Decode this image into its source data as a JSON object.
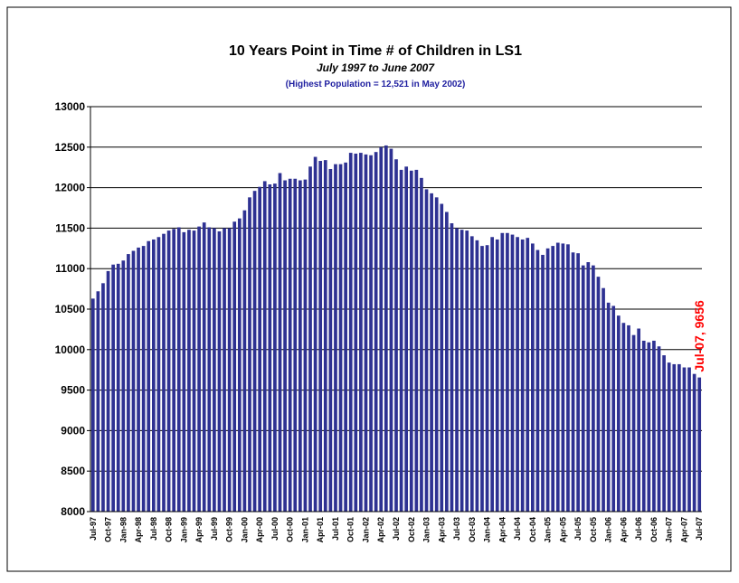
{
  "chart_data": {
    "type": "bar",
    "title": "10 Years Point in Time # of Children in LS1",
    "subtitle": "July 1997 to June 2007",
    "note": "(Highest Population = 12,521 in May 2002)",
    "annotation": "Jul-07, 9656",
    "color": "#2e3192",
    "annotation_color": "#ff0000",
    "note_color": "#1f1fa0",
    "grid": true,
    "ylim": [
      8000,
      13000
    ],
    "yticks": [
      8000,
      8500,
      9000,
      9500,
      10000,
      10500,
      11000,
      11500,
      12000,
      12500,
      13000
    ],
    "categories": [
      "Jul-97",
      null,
      null,
      "Oct-97",
      null,
      null,
      "Jan-98",
      null,
      null,
      "Apr-98",
      null,
      null,
      "Jul-98",
      null,
      null,
      "Oct-98",
      null,
      null,
      "Jan-99",
      null,
      null,
      "Apr-99",
      null,
      null,
      "Jul-99",
      null,
      null,
      "Oct-99",
      null,
      null,
      "Jan-00",
      null,
      null,
      "Apr-00",
      null,
      null,
      "Jul-00",
      null,
      null,
      "Oct-00",
      null,
      null,
      "Jan-01",
      null,
      null,
      "Apr-01",
      null,
      null,
      "Jul-01",
      null,
      null,
      "Oct-01",
      null,
      null,
      "Jan-02",
      null,
      null,
      "Apr-02",
      null,
      null,
      "Jul-02",
      null,
      null,
      "Oct-02",
      null,
      null,
      "Jan-03",
      null,
      null,
      "Apr-03",
      null,
      null,
      "Jul-03",
      null,
      null,
      "Oct-03",
      null,
      null,
      "Jan-04",
      null,
      null,
      "Apr-04",
      null,
      null,
      "Jul-04",
      null,
      null,
      "Oct-04",
      null,
      null,
      "Jan-05",
      null,
      null,
      "Apr-05",
      null,
      null,
      "Jul-05",
      null,
      null,
      "Oct-05",
      null,
      null,
      "Jan-06",
      null,
      null,
      "Apr-06",
      null,
      null,
      "Jul-06",
      null,
      null,
      "Oct-06",
      null,
      null,
      "Jan-07",
      null,
      null,
      "Apr-07",
      null,
      null,
      "Jul-07"
    ],
    "values": [
      10630,
      10720,
      10820,
      10970,
      11050,
      11060,
      11100,
      11180,
      11220,
      11260,
      11280,
      11340,
      11360,
      11390,
      11430,
      11470,
      11490,
      11510,
      11450,
      11480,
      11470,
      11520,
      11570,
      11510,
      11500,
      11460,
      11500,
      11500,
      11580,
      11620,
      11720,
      11880,
      11960,
      12010,
      12080,
      12040,
      12050,
      12180,
      12090,
      12110,
      12110,
      12090,
      12100,
      12260,
      12380,
      12330,
      12340,
      12230,
      12290,
      12290,
      12310,
      12430,
      12420,
      12430,
      12410,
      12400,
      12440,
      12500,
      12521,
      12480,
      12350,
      12220,
      12260,
      12210,
      12220,
      12120,
      11980,
      11930,
      11880,
      11800,
      11700,
      11560,
      11500,
      11480,
      11470,
      11400,
      11350,
      11280,
      11290,
      11390,
      11360,
      11440,
      11440,
      11420,
      11390,
      11360,
      11380,
      11310,
      11230,
      11170,
      11250,
      11280,
      11320,
      11310,
      11300,
      11200,
      11190,
      11040,
      11080,
      11040,
      10900,
      10760,
      10580,
      10540,
      10420,
      10330,
      10300,
      10180,
      10260,
      10110,
      10090,
      10110,
      10040,
      9930,
      9840,
      9820,
      9820,
      9780,
      9780,
      9700,
      9656
    ]
  }
}
